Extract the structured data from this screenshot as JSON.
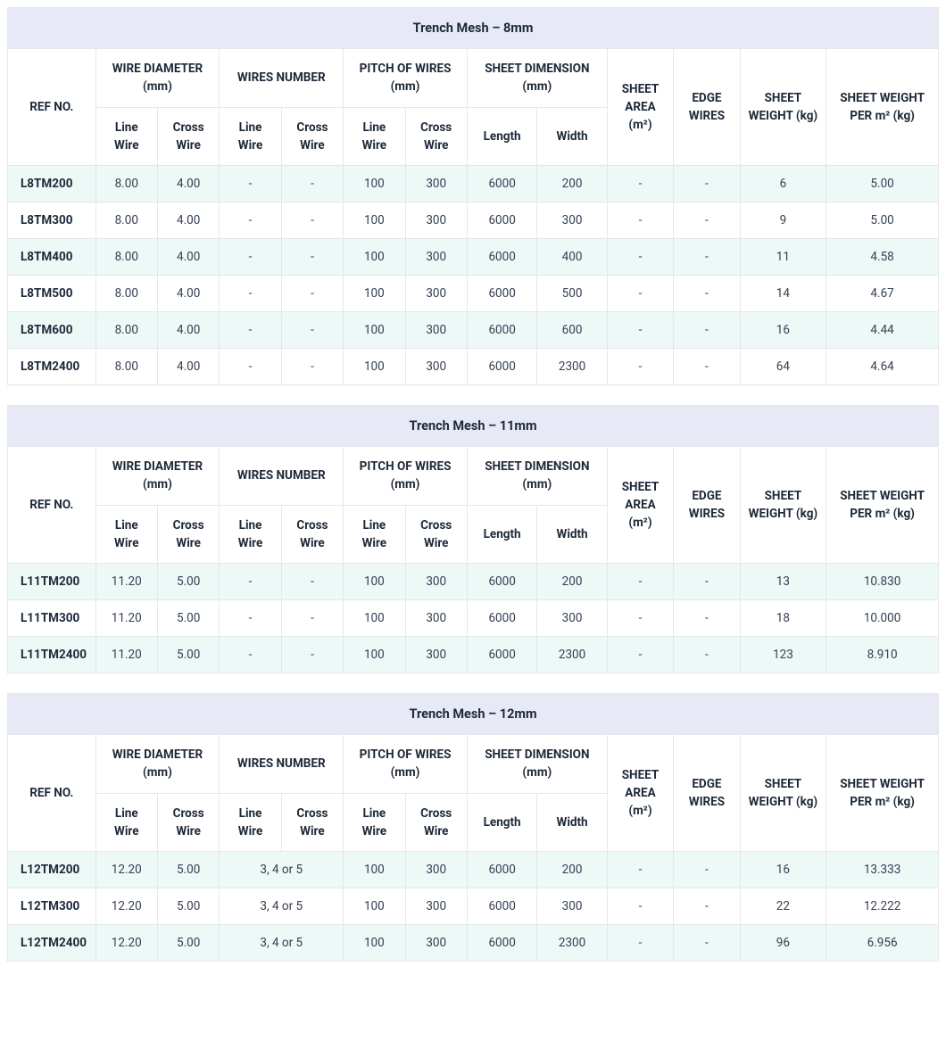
{
  "headers": {
    "refNo": "REF NO.",
    "wireDiameter": "WIRE DIAMETER (mm)",
    "wiresNumber": "WIRES NUMBER",
    "pitchOfWires": "PITCH OF WIRES (mm)",
    "sheetDimension": "SHEET DIMENSION (mm)",
    "sheetArea": "SHEET AREA (m²)",
    "edgeWires": "EDGE WIRES",
    "sheetWeight": "SHEET WEIGHT (kg)",
    "sheetWeightPer": "SHEET WEIGHT PER m² (kg)",
    "lineWire": "Line Wire",
    "crossWire": "Cross Wire",
    "length": "Length",
    "width": "Width"
  },
  "tables": [
    {
      "title": "Trench Mesh – 8mm",
      "mergedWiresNumber": false,
      "rows": [
        {
          "ref": "L8TM200",
          "dl": "8.00",
          "dc": "4.00",
          "nl": "-",
          "nc": "-",
          "pl": "100",
          "pc": "300",
          "len": "6000",
          "wid": "200",
          "area": "-",
          "edge": "-",
          "wt": "6",
          "wpm": "5.00"
        },
        {
          "ref": "L8TM300",
          "dl": "8.00",
          "dc": "4.00",
          "nl": "-",
          "nc": "-",
          "pl": "100",
          "pc": "300",
          "len": "6000",
          "wid": "300",
          "area": "-",
          "edge": "-",
          "wt": "9",
          "wpm": "5.00"
        },
        {
          "ref": "L8TM400",
          "dl": "8.00",
          "dc": "4.00",
          "nl": "-",
          "nc": "-",
          "pl": "100",
          "pc": "300",
          "len": "6000",
          "wid": "400",
          "area": "-",
          "edge": "-",
          "wt": "11",
          "wpm": "4.58"
        },
        {
          "ref": "L8TM500",
          "dl": "8.00",
          "dc": "4.00",
          "nl": "-",
          "nc": "-",
          "pl": "100",
          "pc": "300",
          "len": "6000",
          "wid": "500",
          "area": "-",
          "edge": "-",
          "wt": "14",
          "wpm": "4.67"
        },
        {
          "ref": "L8TM600",
          "dl": "8.00",
          "dc": "4.00",
          "nl": "-",
          "nc": "-",
          "pl": "100",
          "pc": "300",
          "len": "6000",
          "wid": "600",
          "area": "-",
          "edge": "-",
          "wt": "16",
          "wpm": "4.44"
        },
        {
          "ref": "L8TM2400",
          "dl": "8.00",
          "dc": "4.00",
          "nl": "-",
          "nc": "-",
          "pl": "100",
          "pc": "300",
          "len": "6000",
          "wid": "2300",
          "area": "-",
          "edge": "-",
          "wt": "64",
          "wpm": "4.64"
        }
      ]
    },
    {
      "title": "Trench Mesh – 11mm",
      "mergedWiresNumber": false,
      "rows": [
        {
          "ref": "L11TM200",
          "dl": "11.20",
          "dc": "5.00",
          "nl": "-",
          "nc": "-",
          "pl": "100",
          "pc": "300",
          "len": "6000",
          "wid": "200",
          "area": "-",
          "edge": "-",
          "wt": "13",
          "wpm": "10.830"
        },
        {
          "ref": "L11TM300",
          "dl": "11.20",
          "dc": "5.00",
          "nl": "-",
          "nc": "-",
          "pl": "100",
          "pc": "300",
          "len": "6000",
          "wid": "300",
          "area": "-",
          "edge": "-",
          "wt": "18",
          "wpm": "10.000"
        },
        {
          "ref": "L11TM2400",
          "dl": "11.20",
          "dc": "5.00",
          "nl": "-",
          "nc": "-",
          "pl": "100",
          "pc": "300",
          "len": "6000",
          "wid": "2300",
          "area": "-",
          "edge": "-",
          "wt": "123",
          "wpm": "8.910"
        }
      ]
    },
    {
      "title": "Trench Mesh – 12mm",
      "mergedWiresNumber": true,
      "rows": [
        {
          "ref": "L12TM200",
          "dl": "12.20",
          "dc": "5.00",
          "nm": "3, 4 or 5",
          "pl": "100",
          "pc": "300",
          "len": "6000",
          "wid": "200",
          "area": "-",
          "edge": "-",
          "wt": "16",
          "wpm": "13.333"
        },
        {
          "ref": "L12TM300",
          "dl": "12.20",
          "dc": "5.00",
          "nm": "3, 4 or 5",
          "pl": "100",
          "pc": "300",
          "len": "6000",
          "wid": "300",
          "area": "-",
          "edge": "-",
          "wt": "22",
          "wpm": "12.222"
        },
        {
          "ref": "L12TM2400",
          "dl": "12.20",
          "dc": "5.00",
          "nm": "3, 4 or 5",
          "pl": "100",
          "pc": "300",
          "len": "6000",
          "wid": "2300",
          "area": "-",
          "edge": "-",
          "wt": "96",
          "wpm": "6.956"
        }
      ]
    }
  ]
}
